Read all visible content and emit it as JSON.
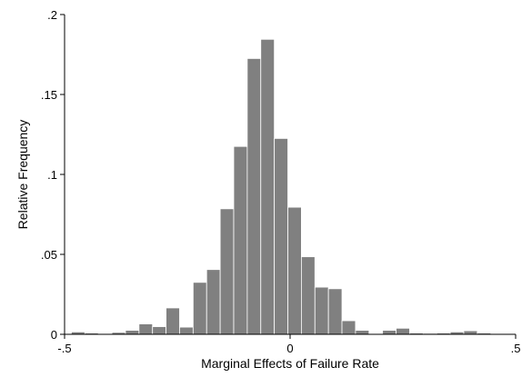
{
  "chart_data": {
    "type": "bar",
    "xlabel": "Marginal Effects of Failure Rate",
    "ylabel": "Relative Frequency",
    "xlim": [
      -0.5,
      0.5
    ],
    "ylim": [
      0,
      0.2
    ],
    "x_ticks": [
      {
        "value": -0.5,
        "label": "-.5"
      },
      {
        "value": 0,
        "label": "0"
      },
      {
        "value": 0.5,
        "label": ".5"
      }
    ],
    "y_ticks": [
      {
        "value": 0,
        "label": "0"
      },
      {
        "value": 0.05,
        "label": ".05"
      },
      {
        "value": 0.1,
        "label": ".1"
      },
      {
        "value": 0.15,
        "label": ".15"
      },
      {
        "value": 0.2,
        "label": ".2"
      }
    ],
    "bin_width": 0.03,
    "bins_start": [
      -0.485,
      -0.455,
      -0.425,
      -0.395,
      -0.365,
      -0.335,
      -0.305,
      -0.275,
      -0.245,
      -0.215,
      -0.185,
      -0.155,
      -0.125,
      -0.095,
      -0.065,
      -0.035,
      -0.005,
      0.025,
      0.055,
      0.085,
      0.115,
      0.145,
      0.175,
      0.205,
      0.235,
      0.265,
      0.295,
      0.325,
      0.355,
      0.385,
      0.415
    ],
    "values": [
      0.0015,
      0.0008,
      0.0003,
      0.0012,
      0.0025,
      0.0065,
      0.0048,
      0.0165,
      0.0045,
      0.0325,
      0.0405,
      0.0785,
      0.1175,
      0.1725,
      0.1845,
      0.1225,
      0.0795,
      0.0485,
      0.0295,
      0.0285,
      0.0085,
      0.0025,
      0.0005,
      0.0025,
      0.0038,
      0.0008,
      0.0006,
      0.0008,
      0.0015,
      0.0022,
      0.0008
    ],
    "bar_color": "#808080",
    "bar_edge_color": "#ffffff"
  }
}
